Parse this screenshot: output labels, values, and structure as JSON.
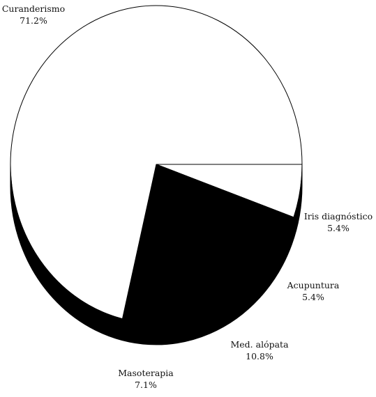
{
  "chart_data": {
    "type": "pie",
    "style": "3d",
    "title": "",
    "start_angle_deg": 0,
    "direction": "clockwise",
    "slices": [
      {
        "name": "Iris diagnóstico",
        "value": 5.4,
        "label": "5.4%",
        "fill": "#ffffff"
      },
      {
        "name": "Acupuntura",
        "value": 5.4,
        "label": "5.4%",
        "fill": "#000000"
      },
      {
        "name": "Med. alópata",
        "value": 10.8,
        "label": "10.8%",
        "fill": "#000000"
      },
      {
        "name": "Masoterapia",
        "value": 7.1,
        "label": "7.1%",
        "fill": "#000000"
      },
      {
        "name": "Curanderismo",
        "value": 71.2,
        "label": "71.2%",
        "fill": "#ffffff"
      }
    ],
    "colors": {
      "stroke": "#000000",
      "side": "#000000",
      "background": "#ffffff"
    }
  }
}
